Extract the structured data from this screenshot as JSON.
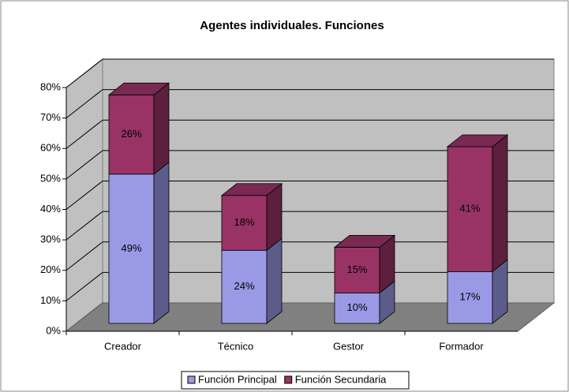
{
  "chart_data": {
    "type": "bar3d_stacked",
    "title": "Agentes individuales. Funciones",
    "categories": [
      "Creador",
      "Técnico",
      "Gestor",
      "Formador"
    ],
    "series": [
      {
        "name": "Función Principal",
        "color": "#9999e6",
        "values": [
          49,
          24,
          10,
          17
        ],
        "value_labels": [
          "49%",
          "24%",
          "10%",
          "17%"
        ]
      },
      {
        "name": "Función Secundaria",
        "color": "#993366",
        "values": [
          26,
          18,
          15,
          41
        ],
        "value_labels": [
          "26%",
          "18%",
          "15%",
          "41%"
        ]
      }
    ],
    "ylim": [
      0,
      80
    ],
    "yticks": [
      {
        "value": 0,
        "label": "0%"
      },
      {
        "value": 10,
        "label": "10%"
      },
      {
        "value": 20,
        "label": "20%"
      },
      {
        "value": 30,
        "label": "30%"
      },
      {
        "value": 40,
        "label": "40%"
      },
      {
        "value": 50,
        "label": "50%"
      },
      {
        "value": 60,
        "label": "60%"
      },
      {
        "value": 70,
        "label": "70%"
      },
      {
        "value": 80,
        "label": "80%"
      }
    ],
    "grid": true,
    "legend": "bottom"
  }
}
